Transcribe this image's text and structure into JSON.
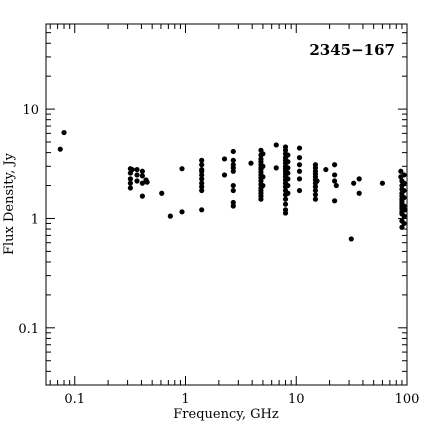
{
  "chart_data": {
    "type": "scatter",
    "title": "2345−167",
    "title_position": "top-right",
    "xlabel": "Frequency, GHz",
    "ylabel": "Flux Density, Jy",
    "x_scale": "log",
    "y_scale": "log",
    "xlim": [
      0.055,
      100
    ],
    "ylim": [
      0.03,
      60
    ],
    "grid": false,
    "x_ticks": [
      {
        "value": 0.1,
        "label": "0.1"
      },
      {
        "value": 1,
        "label": "1"
      },
      {
        "value": 10,
        "label": "10"
      },
      {
        "value": 100,
        "label": "100"
      }
    ],
    "y_ticks": [
      {
        "value": 0.1,
        "label": "0.1"
      },
      {
        "value": 1,
        "label": "1"
      },
      {
        "value": 10,
        "label": "10"
      }
    ],
    "marker_color": "#000000",
    "points": [
      [
        0.074,
        4.3
      ],
      [
        0.08,
        6.1
      ],
      [
        0.318,
        2.85
      ],
      [
        0.318,
        2.6
      ],
      [
        0.318,
        2.3
      ],
      [
        0.318,
        2.1
      ],
      [
        0.318,
        1.9
      ],
      [
        0.33,
        2.8
      ],
      [
        0.365,
        2.8
      ],
      [
        0.365,
        2.5
      ],
      [
        0.365,
        2.2
      ],
      [
        0.408,
        2.7
      ],
      [
        0.408,
        2.45
      ],
      [
        0.408,
        2.1
      ],
      [
        0.408,
        1.6
      ],
      [
        0.44,
        2.25
      ],
      [
        0.45,
        2.15
      ],
      [
        0.61,
        1.7
      ],
      [
        0.73,
        1.05
      ],
      [
        0.93,
        2.85
      ],
      [
        0.93,
        1.15
      ],
      [
        1.4,
        3.4
      ],
      [
        1.4,
        3.1
      ],
      [
        1.4,
        2.8
      ],
      [
        1.4,
        2.7
      ],
      [
        1.4,
        2.5
      ],
      [
        1.4,
        2.3
      ],
      [
        1.4,
        2.1
      ],
      [
        1.4,
        1.95
      ],
      [
        1.4,
        1.8
      ],
      [
        1.4,
        1.2
      ],
      [
        2.25,
        3.5
      ],
      [
        2.25,
        2.5
      ],
      [
        2.7,
        4.1
      ],
      [
        2.7,
        3.4
      ],
      [
        2.7,
        3.1
      ],
      [
        2.7,
        2.9
      ],
      [
        2.7,
        2.7
      ],
      [
        2.7,
        2.0
      ],
      [
        2.7,
        1.8
      ],
      [
        2.7,
        1.4
      ],
      [
        2.7,
        1.3
      ],
      [
        3.9,
        3.2
      ],
      [
        4.8,
        4.2
      ],
      [
        4.8,
        3.8
      ],
      [
        4.8,
        3.5
      ],
      [
        4.8,
        3.3
      ],
      [
        4.8,
        3.1
      ],
      [
        4.8,
        2.9
      ],
      [
        4.8,
        2.8
      ],
      [
        4.8,
        2.65
      ],
      [
        4.8,
        2.5
      ],
      [
        4.8,
        2.35
      ],
      [
        4.8,
        2.2
      ],
      [
        4.8,
        2.05
      ],
      [
        4.8,
        1.9
      ],
      [
        4.8,
        1.8
      ],
      [
        4.8,
        1.7
      ],
      [
        4.8,
        1.6
      ],
      [
        4.8,
        1.5
      ],
      [
        5.0,
        3.9
      ],
      [
        5.0,
        3.0
      ],
      [
        5.0,
        2.4
      ],
      [
        5.0,
        2.0
      ],
      [
        6.6,
        4.7
      ],
      [
        6.6,
        2.9
      ],
      [
        8.0,
        4.5
      ],
      [
        8.0,
        4.2
      ],
      [
        8.0,
        3.9
      ],
      [
        8.0,
        3.6
      ],
      [
        8.0,
        3.4
      ],
      [
        8.0,
        3.2
      ],
      [
        8.0,
        3.0
      ],
      [
        8.0,
        2.85
      ],
      [
        8.0,
        2.7
      ],
      [
        8.0,
        2.55
      ],
      [
        8.0,
        2.4
      ],
      [
        8.0,
        2.25
      ],
      [
        8.0,
        2.1
      ],
      [
        8.0,
        1.95
      ],
      [
        8.0,
        1.8
      ],
      [
        8.0,
        1.65
      ],
      [
        8.0,
        1.5
      ],
      [
        8.0,
        1.35
      ],
      [
        8.0,
        1.2
      ],
      [
        8.0,
        1.12
      ],
      [
        8.4,
        3.8
      ],
      [
        8.4,
        3.3
      ],
      [
        8.4,
        2.9
      ],
      [
        8.4,
        2.6
      ],
      [
        8.4,
        2.3
      ],
      [
        8.4,
        2.0
      ],
      [
        8.4,
        1.7
      ],
      [
        10.7,
        4.4
      ],
      [
        10.7,
        3.6
      ],
      [
        10.7,
        3.1
      ],
      [
        10.7,
        2.7
      ],
      [
        10.7,
        2.3
      ],
      [
        10.7,
        1.8
      ],
      [
        14.9,
        3.1
      ],
      [
        14.9,
        2.9
      ],
      [
        14.9,
        2.7
      ],
      [
        14.9,
        2.55
      ],
      [
        14.9,
        2.4
      ],
      [
        14.9,
        2.25
      ],
      [
        14.9,
        2.1
      ],
      [
        14.9,
        1.95
      ],
      [
        14.9,
        1.8
      ],
      [
        14.9,
        1.65
      ],
      [
        14.9,
        1.5
      ],
      [
        15.4,
        2.2
      ],
      [
        18.5,
        2.8
      ],
      [
        22.2,
        3.1
      ],
      [
        22.2,
        2.5
      ],
      [
        22.2,
        2.2
      ],
      [
        23.0,
        2.0
      ],
      [
        22.2,
        1.45
      ],
      [
        31.4,
        0.65
      ],
      [
        33.0,
        2.1
      ],
      [
        37.0,
        1.7
      ],
      [
        37.0,
        2.3
      ],
      [
        60.0,
        2.1
      ],
      [
        88.0,
        2.7
      ],
      [
        88.0,
        2.4
      ],
      [
        90.0,
        2.2
      ],
      [
        90.0,
        2.0
      ],
      [
        90.0,
        1.85
      ],
      [
        90.0,
        1.7
      ],
      [
        90.0,
        1.6
      ],
      [
        90.0,
        1.5
      ],
      [
        90.0,
        1.42
      ],
      [
        90.0,
        1.35
      ],
      [
        90.0,
        1.28
      ],
      [
        90.0,
        1.22
      ],
      [
        90.0,
        1.15
      ],
      [
        90.0,
        1.1
      ],
      [
        90.0,
        0.95
      ],
      [
        90.0,
        0.83
      ],
      [
        94.0,
        2.5
      ],
      [
        94.0,
        2.1
      ],
      [
        94.0,
        1.8
      ],
      [
        94.0,
        1.55
      ],
      [
        94.0,
        1.3
      ],
      [
        94.0,
        1.05
      ],
      [
        94.0,
        0.9
      ],
      [
        96.0,
        1.2
      ]
    ]
  }
}
